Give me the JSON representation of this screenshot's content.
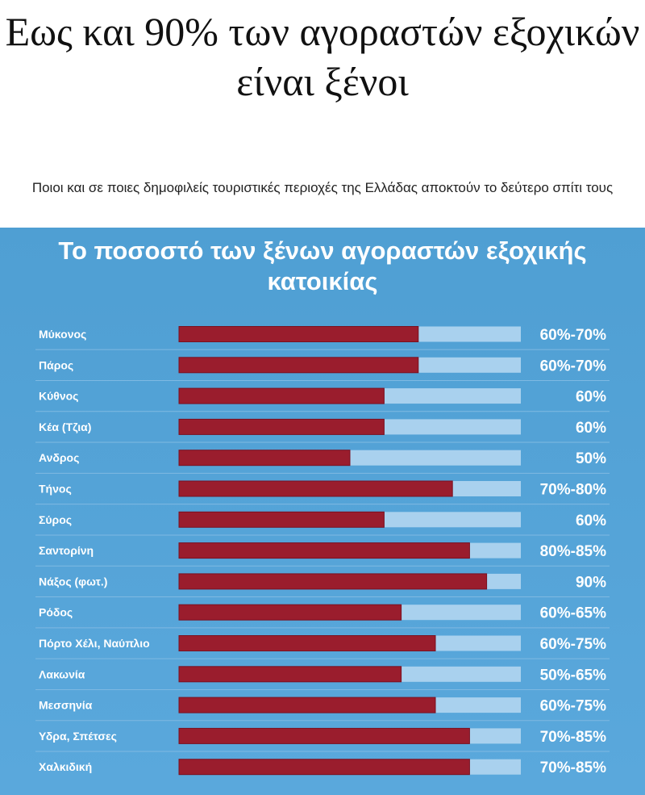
{
  "article": {
    "headline": "Εως και 90% των αγοραστών εξοχικών είναι ξένοι",
    "subheadline": "Ποιοι και σε ποιες δημοφιλείς τουριστικές περιοχές της Ελλάδας αποκτούν το δεύτερο σπίτι τους"
  },
  "colors": {
    "panel_background": "#54a3d8",
    "bar_track": "#a9d1ee",
    "bar_fill": "#9a1d2d",
    "separator": "#7fb9e2"
  },
  "chart_data": {
    "type": "bar",
    "orientation": "horizontal",
    "title": "Το ποσοστό των ξένων αγοραστών εξοχικής κατοικίας",
    "xlim": [
      0,
      100
    ],
    "categories": [
      "Μύκονος",
      "Πάρος",
      "Κύθνος",
      "Κέα (Τζια)",
      "Ανδρος",
      "Τήνος",
      "Σύρος",
      "Σαντορίνη",
      "Νάξος (φωτ.)",
      "Ρόδος",
      "Πόρτο Χέλι, Ναύπλιο",
      "Λακωνία",
      "Μεσσηνία",
      "Υδρα, Σπέτσες",
      "Χαλκιδική"
    ],
    "values": [
      70,
      70,
      60,
      60,
      50,
      80,
      60,
      85,
      90,
      65,
      75,
      65,
      75,
      85,
      85
    ],
    "value_labels": [
      "60%-70%",
      "60%-70%",
      "60%",
      "60%",
      "50%",
      "70%-80%",
      "60%",
      "80%-85%",
      "90%",
      "60%-65%",
      "60%-75%",
      "50%-65%",
      "60%-75%",
      "70%-85%",
      "70%-85%"
    ]
  }
}
